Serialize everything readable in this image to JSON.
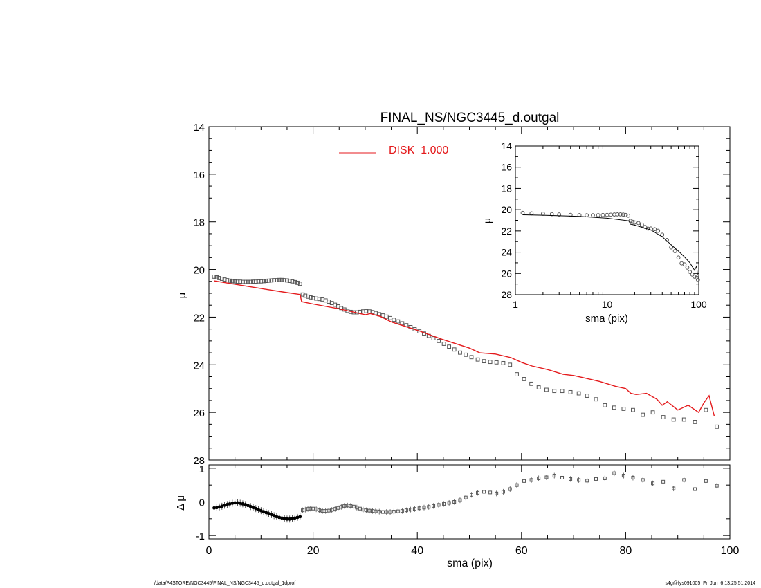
{
  "chart_data": [
    {
      "type": "scatter",
      "panel": "main",
      "title": "FINAL_NS/NGC3445_d.outgal",
      "xlabel": "",
      "ylabel": "μ",
      "xlim": [
        0,
        100
      ],
      "ylim": [
        28,
        14
      ],
      "y_reversed": true,
      "xticks": [
        "0",
        "20",
        "40",
        "60",
        "80",
        "100"
      ],
      "yticks": [
        "14",
        "16",
        "18",
        "20",
        "22",
        "24",
        "26",
        "28"
      ],
      "legend": {
        "label": "DISK  1.000",
        "color": "#e41a1c",
        "placement": "top-center"
      },
      "series": [
        {
          "kind": "points",
          "color": "#555555",
          "x": [
            1.0,
            1.5,
            2.0,
            2.5,
            3.0,
            3.5,
            4.0,
            4.5,
            5.0,
            5.5,
            6.0,
            6.5,
            7.0,
            7.5,
            8.0,
            8.5,
            9.0,
            9.5,
            10.0,
            10.5,
            11.0,
            11.5,
            12.0,
            12.5,
            13.0,
            13.5,
            14.0,
            14.5,
            15.0,
            15.5,
            16.0,
            16.5,
            17.0,
            17.5,
            18.0,
            18.5,
            19.0,
            19.5,
            20.0,
            20.6,
            21.2,
            21.8,
            22.4,
            23.0,
            23.6,
            24.2,
            24.8,
            25.4,
            26.0,
            26.6,
            27.2,
            27.8,
            28.4,
            29.0,
            29.6,
            30.2,
            30.8,
            31.4,
            32.0,
            32.7,
            33.4,
            34.1,
            34.8,
            35.5,
            36.3,
            37.1,
            37.9,
            38.7,
            39.5,
            40.4,
            41.3,
            42.2,
            43.1,
            44.1,
            45.1,
            46.1,
            47.1,
            48.2,
            49.3,
            50.4,
            51.6,
            52.8,
            54.0,
            55.2,
            56.5,
            57.8,
            59.1,
            60.5,
            61.9,
            63.3,
            64.8,
            66.3,
            67.8,
            69.4,
            71.0,
            72.6,
            74.3,
            76.0,
            77.8,
            79.6,
            81.4,
            83.3,
            85.2,
            87.2,
            89.2,
            91.2,
            93.3,
            95.4,
            97.5
          ],
          "y": [
            20.3,
            20.33,
            20.36,
            20.39,
            20.42,
            20.45,
            20.47,
            20.49,
            20.5,
            20.51,
            20.51,
            20.52,
            20.52,
            20.52,
            20.52,
            20.51,
            20.51,
            20.5,
            20.5,
            20.49,
            20.48,
            20.47,
            20.46,
            20.45,
            20.45,
            20.44,
            20.44,
            20.45,
            20.46,
            20.48,
            20.5,
            20.53,
            20.56,
            20.6,
            21.05,
            21.1,
            21.14,
            21.17,
            21.2,
            21.22,
            21.24,
            21.26,
            21.3,
            21.35,
            21.41,
            21.48,
            21.55,
            21.62,
            21.68,
            21.74,
            21.78,
            21.8,
            21.8,
            21.78,
            21.76,
            21.75,
            21.76,
            21.79,
            21.83,
            21.88,
            21.93,
            21.98,
            22.04,
            22.11,
            22.18,
            22.26,
            22.34,
            22.42,
            22.51,
            22.6,
            22.69,
            22.79,
            22.89,
            23.0,
            23.12,
            23.24,
            23.36,
            23.49,
            23.58,
            23.68,
            23.78,
            23.85,
            23.88,
            23.9,
            23.93,
            24.0,
            24.4,
            24.6,
            24.8,
            24.95,
            25.05,
            25.1,
            25.1,
            25.15,
            25.2,
            25.3,
            25.45,
            25.7,
            25.8,
            25.85,
            25.9,
            26.1,
            26.0,
            26.2,
            26.3,
            26.3,
            26.4,
            25.9,
            26.6
          ]
        },
        {
          "kind": "line",
          "name": "DISK  1.000",
          "color": "#e41a1c",
          "x": [
            1,
            5,
            10,
            15,
            17.5,
            17.8,
            20,
            25,
            30,
            31,
            33,
            35,
            40,
            45,
            50,
            52,
            55,
            58,
            60,
            62,
            65,
            68,
            70,
            72,
            75,
            78,
            80,
            81,
            82,
            84,
            86,
            87,
            88,
            90,
            92,
            94,
            95,
            96,
            97
          ],
          "y": [
            20.48,
            20.62,
            20.8,
            20.97,
            21.05,
            21.35,
            21.45,
            21.65,
            21.9,
            21.85,
            21.98,
            22.2,
            22.55,
            22.95,
            23.3,
            23.5,
            23.55,
            23.7,
            23.9,
            24.05,
            24.2,
            24.4,
            24.45,
            24.55,
            24.7,
            24.9,
            25.0,
            25.2,
            25.25,
            25.2,
            25.45,
            25.7,
            25.55,
            25.9,
            25.7,
            26.0,
            25.6,
            25.3,
            26.15
          ]
        }
      ]
    },
    {
      "type": "scatter",
      "panel": "inset",
      "xlabel": "sma (pix)",
      "ylabel": "μ",
      "x_scale": "log",
      "xlim": [
        1,
        100
      ],
      "ylim": [
        28,
        14
      ],
      "xticks": [
        "1",
        "10",
        "100"
      ],
      "yticks": [
        "14",
        "16",
        "18",
        "20",
        "22",
        "24",
        "26",
        "28"
      ],
      "series": [
        {
          "kind": "points",
          "color": "#555555",
          "x": [
            1.2,
            1.5,
            2,
            2.5,
            3,
            4,
            5,
            6,
            7,
            8,
            9,
            10,
            11,
            12,
            13,
            14,
            15,
            16,
            17,
            18,
            19,
            20,
            22,
            24,
            26,
            28,
            30,
            33,
            36,
            40,
            45,
            50,
            55,
            60,
            65,
            70,
            75,
            80,
            85,
            90,
            95,
            98
          ],
          "y": [
            20.3,
            20.34,
            20.38,
            20.42,
            20.45,
            20.49,
            20.51,
            20.52,
            20.52,
            20.51,
            20.5,
            20.49,
            20.47,
            20.45,
            20.44,
            20.44,
            20.46,
            20.5,
            20.56,
            21.05,
            21.14,
            21.2,
            21.26,
            21.41,
            21.62,
            21.78,
            21.77,
            21.83,
            21.98,
            22.35,
            22.85,
            23.55,
            23.9,
            24.5,
            25.05,
            25.15,
            25.45,
            25.85,
            26.1,
            26.3,
            26.4,
            26.6
          ]
        },
        {
          "kind": "line",
          "color": "#000000",
          "x": [
            1.2,
            2,
            5,
            10,
            17.5,
            17.8,
            20,
            30,
            40,
            50,
            60,
            70,
            80,
            90,
            95,
            97
          ],
          "y": [
            20.48,
            20.52,
            20.62,
            20.8,
            21.05,
            21.35,
            21.45,
            21.9,
            22.55,
            23.3,
            23.9,
            24.45,
            25.0,
            25.7,
            25.3,
            26.15
          ]
        }
      ]
    },
    {
      "type": "scatter",
      "panel": "residual",
      "xlabel": "sma (pix)",
      "ylabel": "Δ μ",
      "xlim": [
        0,
        100
      ],
      "ylim": [
        -1.1,
        1.1
      ],
      "xticks": [
        "0",
        "20",
        "40",
        "60",
        "80",
        "100"
      ],
      "yticks": [
        "1",
        "0",
        "-1"
      ],
      "reference_line": 0,
      "series": [
        {
          "kind": "points",
          "color": "#555555",
          "x": [
            1.0,
            1.5,
            2.0,
            2.5,
            3.0,
            3.5,
            4.0,
            4.5,
            5.0,
            5.5,
            6.0,
            6.5,
            7.0,
            7.5,
            8.0,
            8.5,
            9.0,
            9.5,
            10.0,
            10.5,
            11.0,
            11.5,
            12.0,
            12.5,
            13.0,
            13.5,
            14.0,
            14.5,
            15.0,
            15.5,
            16.0,
            16.5,
            17.0,
            17.5,
            18.0,
            18.5,
            19.0,
            19.5,
            20.0,
            20.6,
            21.2,
            21.8,
            22.4,
            23.0,
            23.6,
            24.2,
            24.8,
            25.4,
            26.0,
            26.6,
            27.2,
            27.8,
            28.4,
            29.0,
            29.6,
            30.2,
            30.8,
            31.4,
            32.0,
            32.7,
            33.4,
            34.1,
            34.8,
            35.5,
            36.3,
            37.1,
            37.9,
            38.7,
            39.5,
            40.4,
            41.3,
            42.2,
            43.1,
            44.1,
            45.1,
            46.1,
            47.1,
            48.2,
            49.3,
            50.4,
            51.6,
            52.8,
            54.0,
            55.2,
            56.5,
            57.8,
            59.1,
            60.5,
            61.9,
            63.3,
            64.8,
            66.3,
            67.8,
            69.4,
            71.0,
            72.6,
            74.3,
            76.0,
            77.8,
            79.6,
            81.4,
            83.3,
            85.2,
            87.2,
            89.2,
            91.2,
            93.3,
            95.4,
            97.5
          ],
          "y": [
            -0.18,
            -0.17,
            -0.15,
            -0.13,
            -0.1,
            -0.08,
            -0.06,
            -0.04,
            -0.03,
            -0.03,
            -0.04,
            -0.06,
            -0.08,
            -0.11,
            -0.14,
            -0.17,
            -0.2,
            -0.23,
            -0.26,
            -0.29,
            -0.32,
            -0.35,
            -0.38,
            -0.41,
            -0.44,
            -0.46,
            -0.48,
            -0.5,
            -0.51,
            -0.51,
            -0.5,
            -0.48,
            -0.46,
            -0.44,
            -0.25,
            -0.23,
            -0.21,
            -0.2,
            -0.2,
            -0.22,
            -0.25,
            -0.27,
            -0.27,
            -0.26,
            -0.24,
            -0.21,
            -0.18,
            -0.15,
            -0.12,
            -0.11,
            -0.12,
            -0.14,
            -0.17,
            -0.2,
            -0.23,
            -0.25,
            -0.26,
            -0.27,
            -0.28,
            -0.29,
            -0.3,
            -0.3,
            -0.3,
            -0.29,
            -0.28,
            -0.27,
            -0.25,
            -0.23,
            -0.21,
            -0.19,
            -0.17,
            -0.15,
            -0.12,
            -0.09,
            -0.06,
            -0.03,
            0.0,
            0.05,
            0.13,
            0.21,
            0.27,
            0.3,
            0.28,
            0.25,
            0.3,
            0.38,
            0.5,
            0.62,
            0.65,
            0.7,
            0.73,
            0.78,
            0.72,
            0.68,
            0.65,
            0.63,
            0.68,
            0.7,
            0.85,
            0.78,
            0.72,
            0.65,
            0.55,
            0.6,
            0.4,
            0.65,
            0.38,
            0.62,
            0.48
          ]
        }
      ]
    }
  ],
  "footer": {
    "left": "/data/P4STORE/NGC3445/FINAL_NS/NGC3445_d.outgal_1dprof",
    "right": "s4g@fys091005  Fri Jun  6 13:25:51 2014"
  }
}
